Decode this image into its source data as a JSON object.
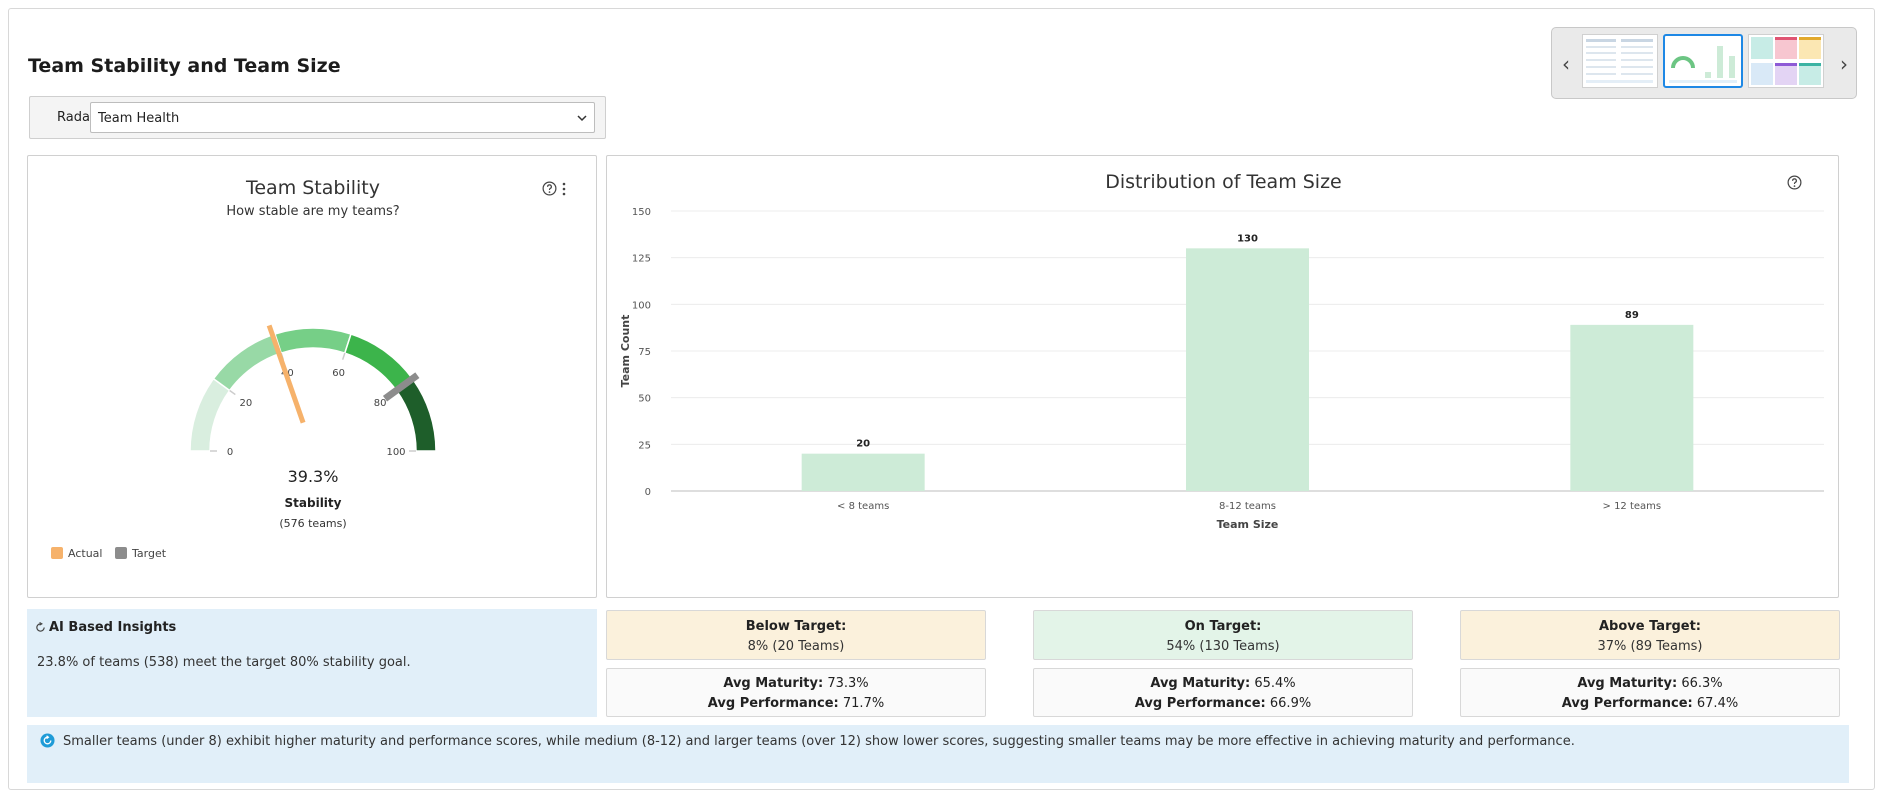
{
  "page": {
    "title": "Team Stability and Team Size"
  },
  "radar": {
    "label": "Radar:",
    "selected": "Team Health"
  },
  "gauge": {
    "title": "Team Stability",
    "subtitle": "How stable are my teams?",
    "value_text": "39.3%",
    "value": 39.3,
    "target": 80,
    "min": 0,
    "max": 100,
    "ticks": [
      "0",
      "20",
      "40",
      "60",
      "80",
      "100"
    ],
    "metric_label": "Stability",
    "count_label": "(576 teams)",
    "legend": {
      "actual": "Actual",
      "target": "Target"
    },
    "colors": {
      "actual": "#f6b26b",
      "target": "#8c8c8c",
      "bands": [
        "#d9eedf",
        "#98d9a6",
        "#76cf87",
        "#3cb44b",
        "#1e5e2a"
      ]
    }
  },
  "chart_data": {
    "type": "bar",
    "title": "Distribution of Team Size",
    "xlabel": "Team Size",
    "ylabel": "Team Count",
    "categories": [
      "< 8 teams",
      "8-12 teams",
      "> 12 teams"
    ],
    "values": [
      20,
      130,
      89
    ],
    "ylim": [
      0,
      150
    ],
    "yticks": [
      0,
      25,
      50,
      75,
      100,
      125,
      150
    ],
    "grid": true,
    "bar_color": "#cdebd7"
  },
  "insights": {
    "title": "AI Based Insights",
    "text": "23.8% of teams (538) meet the target 80% stability goal."
  },
  "status_cards": [
    {
      "title": "Below Target:",
      "value": "8% (20 Teams)",
      "bg": "#fbf1dc",
      "maturity_label": "Avg Maturity:",
      "maturity": "73.3%",
      "performance_label": "Avg Performance:",
      "performance": "71.7%"
    },
    {
      "title": "On Target:",
      "value": "54% (130 Teams)",
      "bg": "#e3f4e8",
      "maturity_label": "Avg Maturity:",
      "maturity": "65.4%",
      "performance_label": "Avg Performance:",
      "performance": "66.9%"
    },
    {
      "title": "Above Target:",
      "value": "37% (89 Teams)",
      "bg": "#fbf1dc",
      "maturity_label": "Avg Maturity:",
      "maturity": "66.3%",
      "performance_label": "Avg Performance:",
      "performance": "67.4%"
    }
  ],
  "summary": {
    "text": "Smaller teams (under 8) exhibit higher maturity and performance scores, while medium (8-12) and larger teams (over 12) show lower scores, suggesting smaller teams may be more effective in achieving maturity and performance."
  }
}
